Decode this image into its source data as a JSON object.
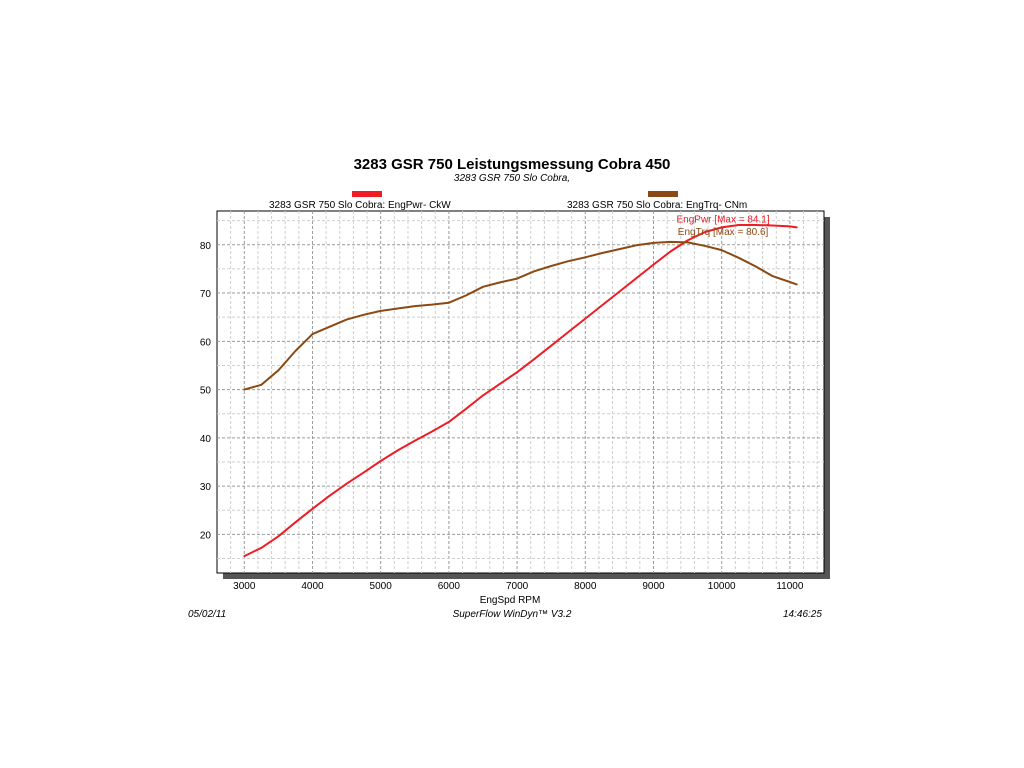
{
  "chart_data": {
    "type": "line",
    "title": "3283 GSR 750 Leistungsmessung Cobra 450",
    "subtitle": "3283 GSR 750 Slo Cobra,",
    "xlabel": "EngSpd  RPM",
    "ylabel": "",
    "xlim": [
      2600,
      11500
    ],
    "ylim": [
      12,
      87
    ],
    "x_ticks": [
      3000,
      4000,
      5000,
      6000,
      7000,
      8000,
      9000,
      10000,
      11000
    ],
    "y_ticks": [
      20,
      30,
      40,
      50,
      60,
      70,
      80
    ],
    "grid": true,
    "legend": [
      {
        "label": "3283 GSR 750 Slo Cobra: EngPwr- CkW",
        "color": "#ee1c25"
      },
      {
        "label": "3283 GSR 750 Slo Cobra: EngTrq- CNm",
        "color": "#8b4a14"
      }
    ],
    "series": [
      {
        "name": "3283 GSR 750 Slo Cobra: EngPwr- CkW",
        "color": "#ee1c25",
        "x": [
          3000,
          3250,
          3500,
          3750,
          4000,
          4250,
          4500,
          4750,
          5000,
          5250,
          5500,
          5750,
          6000,
          6250,
          6500,
          6750,
          7000,
          7250,
          7500,
          7750,
          8000,
          8250,
          8500,
          8750,
          9000,
          9250,
          9500,
          9750,
          10000,
          10250,
          10500,
          10750,
          11000,
          11100
        ],
        "values": [
          15.5,
          17.2,
          19.6,
          22.5,
          25.3,
          28,
          30.5,
          32.8,
          35.2,
          37.4,
          39.4,
          41.3,
          43.3,
          46,
          48.8,
          51.2,
          53.6,
          56.3,
          59.1,
          61.9,
          64.7,
          67.5,
          70.3,
          73.1,
          75.9,
          78.6,
          80.9,
          82.6,
          83.6,
          84.1,
          84.1,
          84,
          83.8,
          83.6
        ]
      },
      {
        "name": "3283 GSR 750 Slo Cobra: EngTrq- CNm",
        "color": "#8b4a14",
        "x": [
          3000,
          3250,
          3500,
          3750,
          4000,
          4250,
          4500,
          4750,
          5000,
          5250,
          5500,
          5750,
          6000,
          6250,
          6500,
          6750,
          7000,
          7250,
          7500,
          7750,
          8000,
          8250,
          8500,
          8750,
          9000,
          9250,
          9500,
          9750,
          10000,
          10250,
          10500,
          10750,
          11000,
          11100
        ],
        "values": [
          50,
          51,
          54,
          58,
          61.5,
          63,
          64.5,
          65.5,
          66.3,
          66.8,
          67.3,
          67.6,
          68,
          69.5,
          71.3,
          72.2,
          73,
          74.5,
          75.6,
          76.6,
          77.4,
          78.3,
          79.1,
          79.9,
          80.4,
          80.6,
          80.5,
          79.8,
          78.9,
          77.3,
          75.5,
          73.5,
          72.3,
          71.8
        ]
      }
    ],
    "annotations": [
      {
        "text": "EngPwr [Max = 84.1]",
        "color": "#ee1c25",
        "x": 10020,
        "y": 84.6
      },
      {
        "text": "EngTrq [Max = 80.6]",
        "color": "#8b4a14",
        "x": 10020,
        "y": 82.0
      }
    ]
  },
  "footer": {
    "date": "05/02/11",
    "software": "SuperFlow WinDyn™ V3.2",
    "time": "14:46:25"
  }
}
